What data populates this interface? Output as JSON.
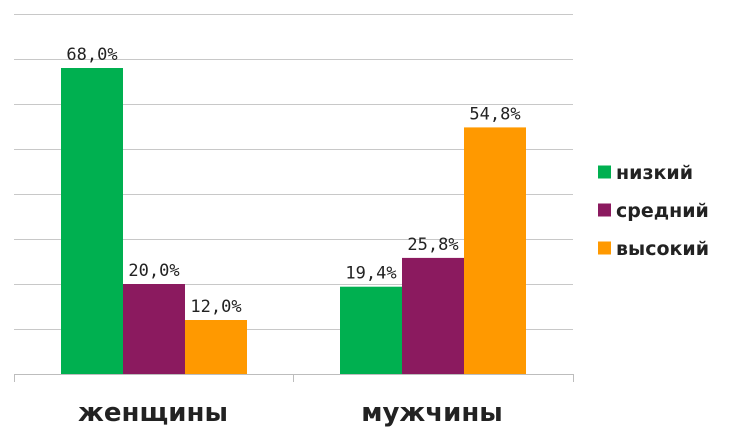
{
  "chart_data": {
    "type": "bar",
    "categories": [
      "женщины",
      "мужчины"
    ],
    "series": [
      {
        "name": "низкий",
        "color": "#00b050",
        "values": [
          68.0,
          19.4
        ],
        "labels": [
          "68,0%",
          "19,4%"
        ]
      },
      {
        "name": "средний",
        "color": "#8b1a5f",
        "values": [
          20.0,
          25.8
        ],
        "labels": [
          "20,0%",
          "25,8%"
        ]
      },
      {
        "name": "высокий",
        "color": "#ff9900",
        "values": [
          12.0,
          54.8
        ],
        "labels": [
          "12,0%",
          "54,8%"
        ]
      }
    ],
    "ylim": [
      0,
      80
    ],
    "grid": true,
    "legend_position": "right"
  }
}
